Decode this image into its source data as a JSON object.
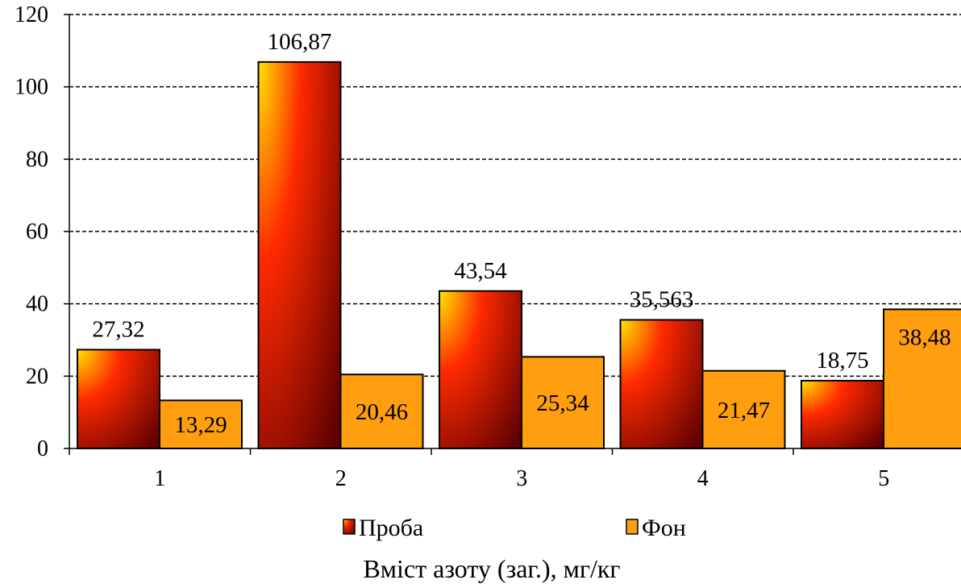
{
  "chart_data": {
    "type": "bar",
    "categories": [
      "1",
      "2",
      "3",
      "4",
      "5"
    ],
    "series": [
      {
        "name": "Проба",
        "values": [
          27.32,
          106.87,
          43.54,
          35.563,
          18.75
        ],
        "labels": [
          "27,32",
          "106,87",
          "43,54",
          "35,563",
          "18,75"
        ]
      },
      {
        "name": "Фон",
        "values": [
          13.29,
          20.46,
          25.34,
          21.47,
          38.48
        ],
        "labels": [
          "13,29",
          "20,46",
          "25,34",
          "21,47",
          "38,48"
        ]
      }
    ],
    "y_ticks": [
      "0",
      "20",
      "40",
      "60",
      "80",
      "100",
      "120"
    ],
    "ylim": [
      0,
      120
    ],
    "grid": true,
    "legend_position": "bottom",
    "title": "Вміст азоту (заг.), мг/кг",
    "xlabel": "",
    "ylabel": ""
  },
  "colors": {
    "proba_light": "#ffe600",
    "proba_mid": "#ff2a00",
    "proba_dark": "#5c0000",
    "fon": "#ff9f10",
    "border": "#000000",
    "grid": "#000000"
  }
}
